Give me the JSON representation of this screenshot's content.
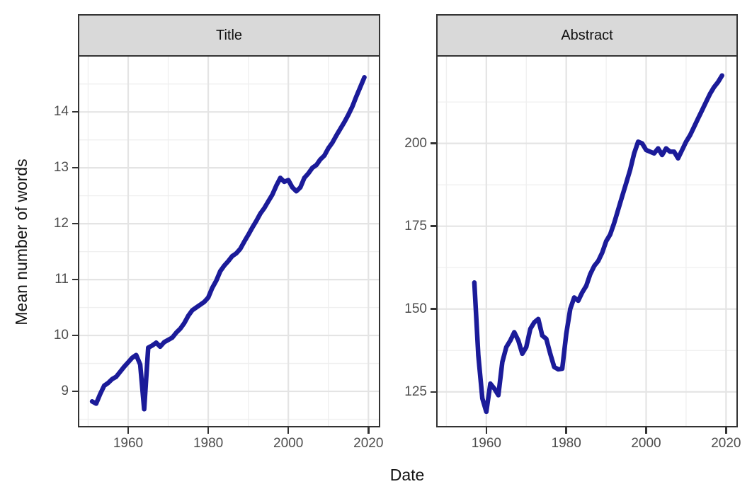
{
  "figure": {
    "xlabel": "Date",
    "ylabel": "Mean number of words",
    "line_color": "#1b1b99",
    "strip_bg": "#d9d9d9",
    "border_color": "#333333",
    "grid_major_color": "#e4e4e4",
    "grid_minor_color": "#efefef",
    "tick_label_color": "#4d4d4d"
  },
  "chart_data": [
    {
      "type": "line",
      "title": "Title",
      "xlabel": "Date",
      "ylabel": "Mean number of words",
      "legend": "none",
      "grid": true,
      "xlim": [
        1947.8,
        2022.6
      ],
      "ylim": [
        8.38,
        14.99
      ],
      "xticks": [
        1960,
        1980,
        2000,
        2020
      ],
      "yticks": [
        9,
        10,
        11,
        12,
        13,
        14
      ],
      "minor_xticks": [
        1950,
        1970,
        1990,
        2010
      ],
      "minor_yticks": [
        8.5,
        9.5,
        10.5,
        11.5,
        12.5,
        13.5,
        14.5
      ],
      "x": [
        1951,
        1952,
        1953,
        1954,
        1955,
        1956,
        1957,
        1958,
        1959,
        1960,
        1961,
        1962,
        1963,
        1964,
        1965,
        1966,
        1967,
        1968,
        1969,
        1970,
        1971,
        1972,
        1973,
        1974,
        1975,
        1976,
        1977,
        1978,
        1979,
        1980,
        1981,
        1982,
        1983,
        1984,
        1985,
        1986,
        1987,
        1988,
        1989,
        1990,
        1991,
        1992,
        1993,
        1994,
        1995,
        1996,
        1997,
        1998,
        1999,
        2000,
        2001,
        2002,
        2003,
        2004,
        2005,
        2006,
        2007,
        2008,
        2009,
        2010,
        2011,
        2012,
        2013,
        2014,
        2015,
        2016,
        2017,
        2018,
        2019
      ],
      "values": [
        8.82,
        8.78,
        8.95,
        9.1,
        9.15,
        9.22,
        9.26,
        9.35,
        9.44,
        9.52,
        9.6,
        9.65,
        9.48,
        8.68,
        9.78,
        9.82,
        9.87,
        9.8,
        9.88,
        9.92,
        9.96,
        10.05,
        10.12,
        10.22,
        10.35,
        10.45,
        10.5,
        10.55,
        10.6,
        10.68,
        10.85,
        10.98,
        11.15,
        11.25,
        11.33,
        11.42,
        11.47,
        11.55,
        11.68,
        11.8,
        11.93,
        12.05,
        12.18,
        12.28,
        12.4,
        12.52,
        12.68,
        12.82,
        12.75,
        12.78,
        12.65,
        12.58,
        12.65,
        12.82,
        12.9,
        13.0,
        13.05,
        13.15,
        13.22,
        13.35,
        13.45,
        13.58,
        13.7,
        13.82,
        13.95,
        14.1,
        14.28,
        14.45,
        14.62
      ]
    },
    {
      "type": "line",
      "title": "Abstract",
      "xlabel": "Date",
      "ylabel": "Mean number of words",
      "legend": "none",
      "grid": true,
      "xlim": [
        1947.8,
        2022.6
      ],
      "ylim": [
        114.7,
        226.2
      ],
      "xticks": [
        1960,
        1980,
        2000,
        2020
      ],
      "yticks": [
        125,
        150,
        175,
        200
      ],
      "minor_xticks": [
        1950,
        1970,
        1990,
        2010
      ],
      "minor_yticks": [
        137.5,
        162.5,
        187.5,
        212.5
      ],
      "x": [
        1957,
        1958,
        1959,
        1960,
        1961,
        1962,
        1963,
        1964,
        1965,
        1966,
        1967,
        1968,
        1969,
        1970,
        1971,
        1972,
        1973,
        1974,
        1975,
        1976,
        1977,
        1978,
        1979,
        1980,
        1981,
        1982,
        1983,
        1984,
        1985,
        1986,
        1987,
        1988,
        1989,
        1990,
        1991,
        1992,
        1993,
        1994,
        1995,
        1996,
        1997,
        1998,
        1999,
        2000,
        2001,
        2002,
        2003,
        2004,
        2005,
        2006,
        2007,
        2008,
        2009,
        2010,
        2011,
        2012,
        2013,
        2014,
        2015,
        2016,
        2017,
        2018,
        2019
      ],
      "values": [
        158,
        136,
        123,
        119,
        127.5,
        126,
        124,
        134,
        138.5,
        140.5,
        143,
        140.5,
        136.5,
        138.5,
        144,
        146,
        147,
        142,
        141,
        136.5,
        132.5,
        131.8,
        132,
        142.5,
        150,
        153.5,
        152.5,
        155,
        157,
        160.5,
        163,
        164.5,
        167,
        170.5,
        172.5,
        176,
        180,
        184,
        188,
        192,
        197,
        200.5,
        200,
        198,
        197.5,
        197,
        198.5,
        196.5,
        198.5,
        197.5,
        197.5,
        195.5,
        198,
        200.5,
        202.5,
        205,
        207.5,
        210,
        212.5,
        215,
        217,
        218.5,
        220.5
      ]
    }
  ]
}
